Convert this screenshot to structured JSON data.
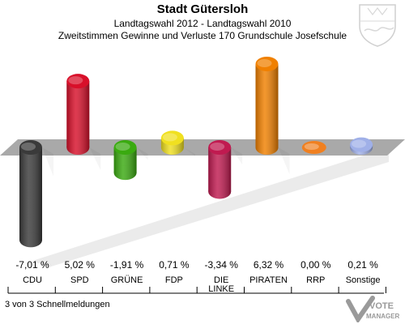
{
  "header": {
    "title": "Stadt Gütersloh",
    "subtitle1": "Landtagswahl 2012 - Landtagswahl 2010",
    "subtitle2": "Zweitstimmen Gewinne und Verluste 170 Grundschule Josefschule"
  },
  "footer": {
    "note": "3 von 3 Schnellmeldungen",
    "logo_text": "VOTE MANAGER"
  },
  "chart_data": {
    "type": "bar",
    "title": "Zweitstimmen Gewinne und Verluste 170 Grundschule Josefschule",
    "categories": [
      "CDU",
      "SPD",
      "GRÜNE",
      "FDP",
      "DIE LINKE",
      "PIRATEN",
      "RRP",
      "Sonstige"
    ],
    "category_lines": [
      [
        "CDU"
      ],
      [
        "SPD"
      ],
      [
        "GRÜNE"
      ],
      [
        "FDP"
      ],
      [
        "DIE",
        "LINKE"
      ],
      [
        "PIRATEN"
      ],
      [
        "RRP"
      ],
      [
        "Sonstige"
      ]
    ],
    "values": [
      -7.01,
      5.02,
      -1.91,
      0.71,
      -3.34,
      6.32,
      0.0,
      0.21
    ],
    "value_labels": [
      "-7,01 %",
      "5,02 %",
      "-1,91 %",
      "0,71 %",
      "-3,34 %",
      "6,32 %",
      "0,00 %",
      "0,21 %"
    ],
    "colors": [
      "#3a3a3a",
      "#d8102a",
      "#3aaa10",
      "#f0e020",
      "#c01a50",
      "#f08000",
      "#f08020",
      "#a0b0e8"
    ],
    "ylim": [
      -7.5,
      7.5
    ]
  }
}
